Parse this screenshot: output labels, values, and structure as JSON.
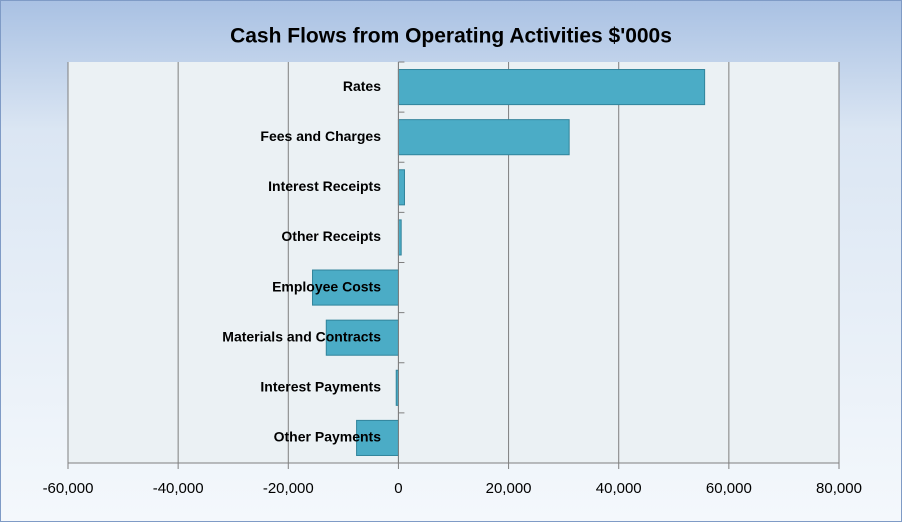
{
  "chart_data": {
    "type": "hbar",
    "title": "Cash Flows from Operating Activities $'000s",
    "categories": [
      "Rates",
      "Fees and Charges",
      "Interest Receipts",
      "Other Receipts",
      "Employee Costs",
      "Materials and Contracts",
      "Interest Payments",
      "Other Payments"
    ],
    "values": [
      55600,
      31000,
      1100,
      500,
      -15600,
      -13100,
      -400,
      -7600
    ],
    "color": "#4bacc6",
    "xlim": [
      -60000,
      80000
    ],
    "xticks": [
      {
        "value": -60000,
        "label": "-60,000"
      },
      {
        "value": -40000,
        "label": "-40,000"
      },
      {
        "value": -20000,
        "label": "-20,000"
      },
      0,
      {
        "value": 20000,
        "label": "20,000"
      },
      {
        "value": 40000,
        "label": "40,000"
      },
      {
        "value": 60000,
        "label": "60,000"
      },
      {
        "value": 80000,
        "label": "80,000"
      }
    ],
    "grid": true
  }
}
